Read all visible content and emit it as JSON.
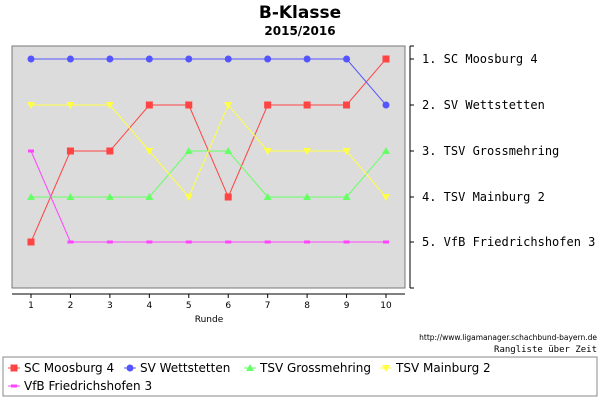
{
  "header": {
    "title": "B-Klasse",
    "subtitle": "2015/2016"
  },
  "footer": {
    "source": "http://www.ligamanager.schachbund-bayern.de",
    "note": "Rangliste über Zeit"
  },
  "chart_data": {
    "type": "line",
    "title": "B-Klasse",
    "subtitle": "2015/2016",
    "xlabel": "Runde",
    "ylabel": "",
    "x": [
      1,
      2,
      3,
      4,
      5,
      6,
      7,
      8,
      9,
      10
    ],
    "x_tick_labels": [
      "1",
      "2",
      "3",
      "4",
      "5",
      "6",
      "7",
      "8",
      "9",
      "10"
    ],
    "ylim": [
      1,
      6
    ],
    "y_inverted": true,
    "grid": false,
    "background": "#dcdcdc",
    "rank_labels": [
      "1. SC Moosburg 4",
      "2. SV Wettstetten",
      "3. TSV Grossmehring",
      "4. TSV Mainburg 2",
      "5. VfB Friedrichshofen 3"
    ],
    "legend_position": "bottom",
    "series": [
      {
        "name": "SC Moosburg 4",
        "color": "#ff4444",
        "marker": "square",
        "values": [
          5,
          3,
          3,
          2,
          2,
          4,
          2,
          2,
          2,
          1
        ]
      },
      {
        "name": "SV Wettstetten",
        "color": "#5555ff",
        "marker": "circle",
        "values": [
          1,
          1,
          1,
          1,
          1,
          1,
          1,
          1,
          1,
          2
        ]
      },
      {
        "name": "TSV Grossmehring",
        "color": "#66ff66",
        "marker": "triangle",
        "values": [
          4,
          4,
          4,
          4,
          3,
          3,
          4,
          4,
          4,
          3
        ]
      },
      {
        "name": "TSV Mainburg 2",
        "color": "#ffff44",
        "marker": "triangle-down",
        "values": [
          2,
          2,
          2,
          3,
          4,
          2,
          3,
          3,
          3,
          4
        ]
      },
      {
        "name": "VfB Friedrichshofen 3",
        "color": "#ff44ff",
        "marker": "dash",
        "values": [
          3,
          5,
          5,
          5,
          5,
          5,
          5,
          5,
          5,
          5
        ]
      }
    ]
  }
}
